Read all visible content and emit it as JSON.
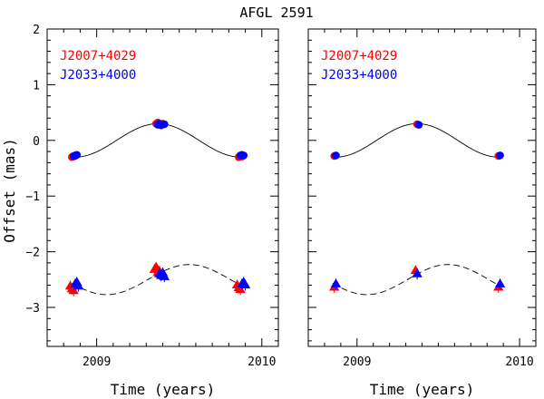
{
  "chart_data": {
    "type": "scatter",
    "title": "AFGL 2591",
    "ylabel": "Offset (mas)",
    "colors": {
      "J2007+4029": "#ff0000",
      "J2033+4000": "#0000ff",
      "axes": "#000000"
    },
    "panels": [
      {
        "xlabel": "Time (years)",
        "xlim": [
          2008.7,
          2010.1
        ],
        "ylim": [
          -3.7,
          2.0
        ],
        "xticks": [
          2009,
          2010
        ],
        "xtick_labels": [
          "2009",
          "2010"
        ],
        "yticks": [
          -3,
          -2,
          -1,
          0,
          1,
          2
        ],
        "ytick_labels": [
          "−3",
          "−2",
          "−1",
          "0",
          "1",
          "2"
        ],
        "legend": [
          "J2007+4029",
          "J2033+4000"
        ],
        "series": [
          {
            "name": "J2007+4029",
            "marker": "circle",
            "x": [
              2008.85,
              2008.86,
              2008.87,
              2009.36,
              2009.37,
              2009.38,
              2009.4,
              2009.86,
              2009.87,
              2009.88
            ],
            "y": [
              -0.3,
              -0.29,
              -0.28,
              0.3,
              0.32,
              0.29,
              0.3,
              -0.3,
              -0.28,
              -0.29
            ]
          },
          {
            "name": "J2033+4000",
            "marker": "circle",
            "x": [
              2008.86,
              2008.87,
              2008.88,
              2009.37,
              2009.38,
              2009.39,
              2009.41,
              2009.87,
              2009.88,
              2009.89
            ],
            "y": [
              -0.28,
              -0.27,
              -0.26,
              0.28,
              0.3,
              0.27,
              0.29,
              -0.27,
              -0.26,
              -0.27
            ]
          },
          {
            "name": "J2007+4029",
            "marker": "triangle",
            "x": [
              2008.84,
              2008.85,
              2008.86,
              2009.35,
              2009.36,
              2009.37,
              2009.38,
              2009.85,
              2009.86,
              2009.87
            ],
            "y": [
              -2.62,
              -2.67,
              -2.7,
              -2.32,
              -2.28,
              -2.38,
              -2.35,
              -2.6,
              -2.65,
              -2.68
            ]
          },
          {
            "name": "J2033+4000",
            "marker": "triangle",
            "x": [
              2008.87,
              2008.88,
              2008.89,
              2009.38,
              2009.39,
              2009.4,
              2009.41,
              2009.88,
              2009.89,
              2009.9
            ],
            "y": [
              -2.58,
              -2.55,
              -2.62,
              -2.4,
              -2.43,
              -2.38,
              -2.45,
              -2.58,
              -2.55,
              -2.6
            ]
          }
        ],
        "model_curves": [
          {
            "style": "solid",
            "amplitude": 0.3,
            "period": 1.0,
            "peak_epoch": 2009.37,
            "offset": 0.0,
            "x_range": [
              2008.85,
              2009.88
            ]
          },
          {
            "style": "dashed",
            "amplitude": 0.27,
            "period": 1.0,
            "peak_epoch": 2009.56,
            "offset": -2.5,
            "x_range": [
              2008.85,
              2009.88
            ]
          }
        ]
      },
      {
        "xlabel": "Time (years)",
        "xlim": [
          2008.7,
          2010.1
        ],
        "ylim": [
          -3.7,
          2.0
        ],
        "xticks": [
          2009,
          2010
        ],
        "xtick_labels": [
          "2009",
          "2010"
        ],
        "yticks": [
          -3,
          -2,
          -1,
          0,
          1,
          2
        ],
        "ytick_labels": [],
        "legend": [
          "J2007+4029",
          "J2033+4000"
        ],
        "series": [
          {
            "name": "J2007+4029",
            "marker": "circle",
            "x": [
              2008.86,
              2009.37,
              2009.87
            ],
            "y": [
              -0.28,
              0.29,
              -0.28
            ]
          },
          {
            "name": "J2033+4000",
            "marker": "circle",
            "x": [
              2008.87,
              2009.38,
              2009.88
            ],
            "y": [
              -0.27,
              0.28,
              -0.27
            ]
          },
          {
            "name": "J2007+4029",
            "marker": "triangle",
            "x": [
              2008.86,
              2009.36,
              2009.87
            ],
            "y": [
              -2.64,
              -2.34,
              -2.64
            ]
          },
          {
            "name": "J2033+4000",
            "marker": "triangle",
            "x": [
              2008.87,
              2009.37,
              2009.88
            ],
            "y": [
              -2.58,
              -2.4,
              -2.58
            ]
          }
        ],
        "model_curves": [
          {
            "style": "solid",
            "amplitude": 0.3,
            "period": 1.0,
            "peak_epoch": 2009.37,
            "offset": 0.0,
            "x_range": [
              2008.85,
              2009.88
            ]
          },
          {
            "style": "dashed",
            "amplitude": 0.27,
            "period": 1.0,
            "peak_epoch": 2009.56,
            "offset": -2.5,
            "x_range": [
              2008.85,
              2009.88
            ]
          }
        ]
      }
    ]
  }
}
